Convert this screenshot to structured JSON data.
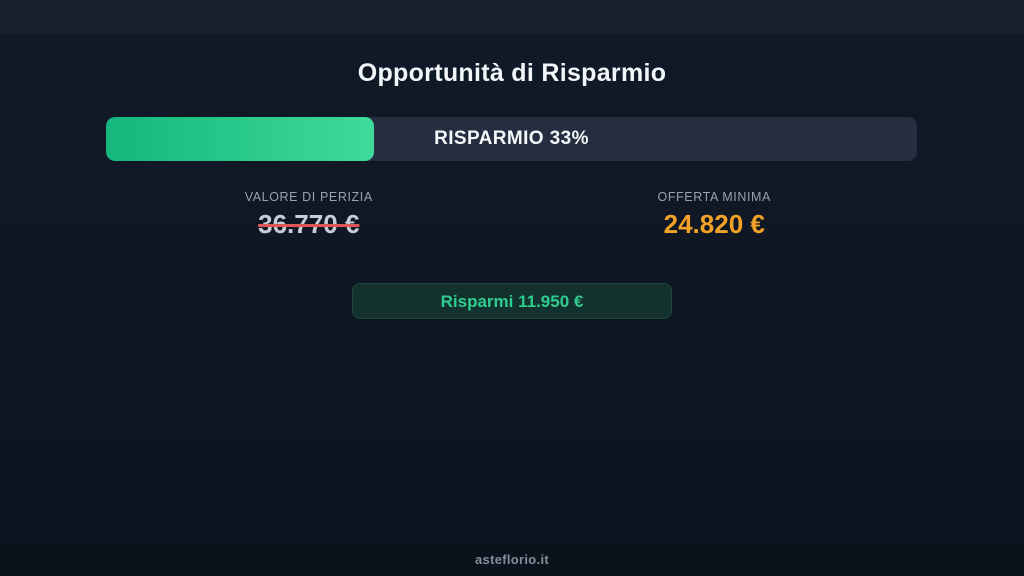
{
  "page": {
    "title": "Opportunità di Risparmio",
    "footer_site": "asteflorio.it"
  },
  "savings": {
    "percent": 33,
    "bar_label": "RISPARMIO 33%",
    "appraisal": {
      "label": "VALORE DI PERIZIA",
      "value": "36.770 €"
    },
    "minimum_offer": {
      "label": "OFFERTA MINIMA",
      "value": "24.820 €"
    },
    "badge_label": "Risparmi 11.950 €"
  },
  "colors": {
    "background_top": "#101a28",
    "background_bottom": "#0d141f",
    "top_bar": "#16202f",
    "progress_track": "#252e40",
    "progress_fill_start": "#15b77d",
    "progress_fill_end": "#3eda9a",
    "title_text": "#f2f5f9",
    "label_text": "#97a1b2",
    "struck_value_text": "#c6cdd8",
    "strike_line": "#e05555",
    "offer_value_text": "#f2a227",
    "badge_background": "#13322d",
    "badge_border": "#1d453d",
    "badge_text": "#2ecc8e",
    "footer_background": "#0b121c",
    "footer_text": "#848e9c"
  }
}
